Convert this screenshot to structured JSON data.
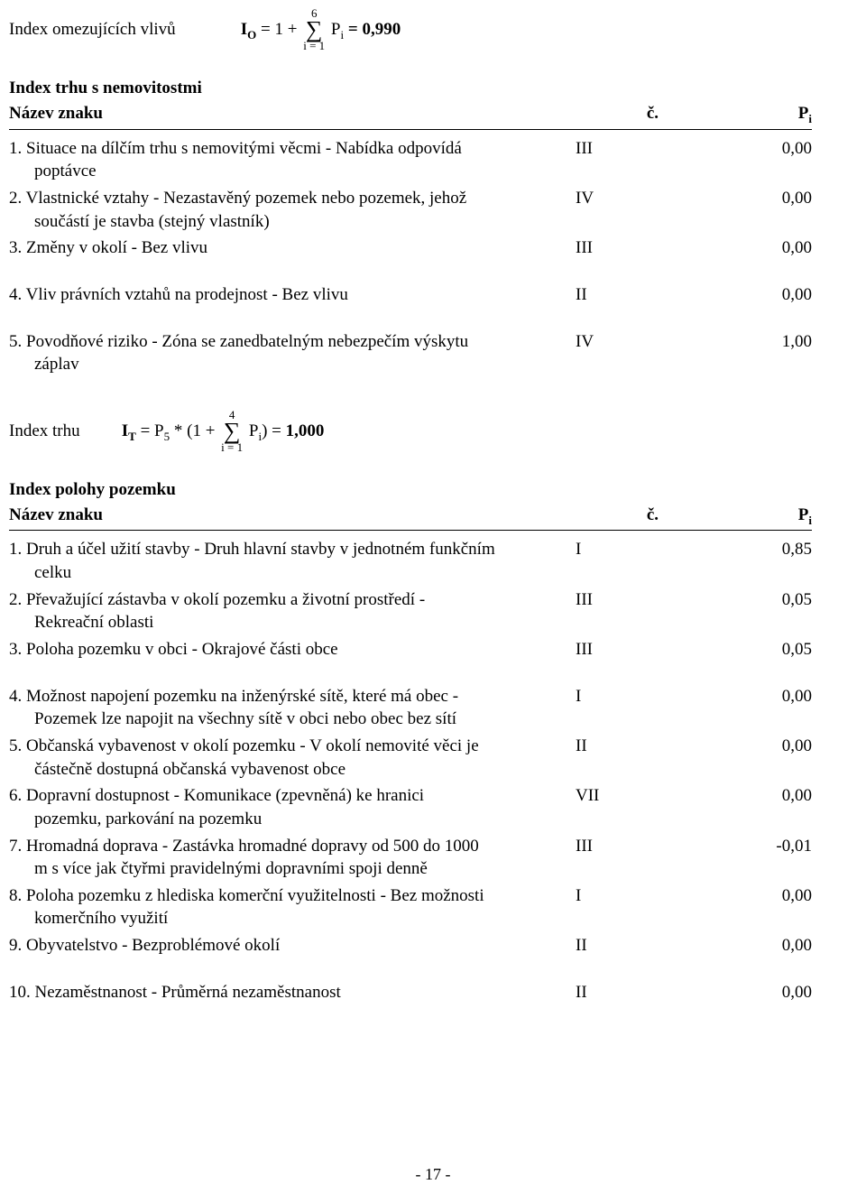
{
  "formula1": {
    "label": "Index omezujících vlivů",
    "lhs_sym": "I",
    "lhs_sub": "O",
    "eq1": " = 1 + ",
    "sum_top": "6",
    "sum_bot": "i = 1",
    "p_sym": "P",
    "p_sub": "i",
    "result": " = 0,990"
  },
  "section_trhu": {
    "title": "Index trhu s nemovitostmi",
    "header_name": "Název znaku",
    "header_c": "č.",
    "header_p": "Pᵢ",
    "header_p_sym": "P",
    "header_p_sub": "i",
    "rows_a": [
      {
        "name": "1. Situace na dílčím trhu s nemovitými věcmi - Nabídka odpovídá",
        "cont": "poptávce",
        "c": "III",
        "p": "0,00"
      },
      {
        "name": "2. Vlastnické vztahy - Nezastavěný pozemek nebo pozemek, jehož",
        "cont": "součástí je stavba (stejný vlastník)",
        "c": "IV",
        "p": "0,00"
      },
      {
        "name": "3. Změny v okolí - Bez vlivu",
        "cont": "",
        "c": "III",
        "p": "0,00"
      }
    ],
    "rows_b": [
      {
        "name": "4. Vliv právních vztahů na prodejnost - Bez vlivu",
        "cont": "",
        "c": "II",
        "p": "0,00"
      }
    ],
    "rows_c": [
      {
        "name": "5. Povodňové riziko - Zóna se zanedbatelným nebezpečím výskytu",
        "cont": "záplav",
        "c": "IV",
        "p": "1,00"
      }
    ]
  },
  "formula2": {
    "label": "Index trhu",
    "lhs_sym": "I",
    "lhs_sub": "T",
    "eq1": " = P",
    "p5_sub": "5",
    "eq2": " * (1 + ",
    "sum_top": "4",
    "sum_bot": "i = 1",
    "p_sym": "P",
    "p_sub": "i",
    "result_close": ") = ",
    "result_val": "1,000"
  },
  "section_poloha": {
    "title": "Index polohy pozemku",
    "header_name": "Název znaku",
    "header_c": "č.",
    "header_p_sym": "P",
    "header_p_sub": "i",
    "rows_a": [
      {
        "name": "1. Druh a účel užití stavby - Druh hlavní stavby v jednotném funkčním",
        "cont": "celku",
        "c": "I",
        "p": "0,85"
      },
      {
        "name": "2. Převažující zástavba v okolí pozemku a životní prostředí -",
        "cont": "Rekreační oblasti",
        "c": "III",
        "p": "0,05"
      },
      {
        "name": "3. Poloha pozemku v obci - Okrajové části obce",
        "cont": "",
        "c": "III",
        "p": "0,05"
      }
    ],
    "rows_b": [
      {
        "name": "4. Možnost napojení pozemku na inženýrské sítě, které má obec -",
        "cont": "Pozemek lze napojit na všechny sítě v obci nebo obec bez sítí",
        "c": "I",
        "p": "0,00"
      },
      {
        "name": "5. Občanská vybavenost v okolí pozemku - V okolí nemovité věci je",
        "cont": "částečně dostupná občanská vybavenost obce",
        "c": "II",
        "p": "0,00"
      },
      {
        "name": "6. Dopravní dostupnost - Komunikace (zpevněná) ke hranici",
        "cont": "pozemku, parkování na pozemku",
        "c": "VII",
        "p": "0,00"
      },
      {
        "name": "7. Hromadná doprava - Zastávka hromadné dopravy od 500 do 1000",
        "cont": "m s více jak čtyřmi pravidelnými dopravními spoji denně",
        "c": "III",
        "p": "-0,01"
      },
      {
        "name": "8. Poloha pozemku z hlediska komerční využitelnosti - Bez možnosti",
        "cont": "komerčního využití",
        "c": "I",
        "p": "0,00"
      },
      {
        "name": "9. Obyvatelstvo - Bezproblémové okolí",
        "cont": "",
        "c": "II",
        "p": "0,00"
      }
    ],
    "rows_c": [
      {
        "name": "10. Nezaměstnanost - Průměrná nezaměstnanost",
        "cont": "",
        "c": "II",
        "p": "0,00"
      }
    ]
  },
  "page_number": "- 17 -"
}
